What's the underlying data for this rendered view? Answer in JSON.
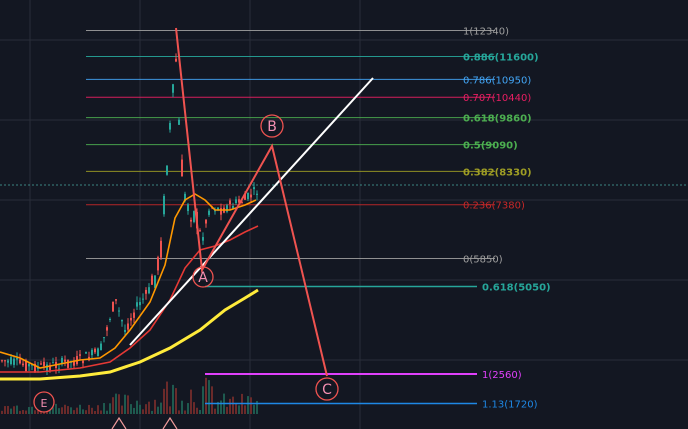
{
  "chart_data": {
    "type": "candlestick",
    "fib_levels": [
      {
        "ratio": "1",
        "price": 12340,
        "text": "1(12340)",
        "color": "#9e9e9e",
        "bold": false
      },
      {
        "ratio": "0.886",
        "price": 11600,
        "text": "0.886(11600)",
        "color": "#26a69a",
        "bold": true
      },
      {
        "ratio": "0.786",
        "price": 10950,
        "text": "0.786(10950)",
        "color": "#42a5f5",
        "bold": false
      },
      {
        "ratio": "0.707",
        "price": 10440,
        "text": "0.707(10440)",
        "color": "#e91e63",
        "bold": false
      },
      {
        "ratio": "0.618",
        "price": 9860,
        "text": "0.618(9860)",
        "color": "#4caf50",
        "bold": true
      },
      {
        "ratio": "0.5",
        "price": 9090,
        "text": "0.5(9090)",
        "color": "#4caf50",
        "bold": true
      },
      {
        "ratio": "0.382",
        "price": 8330,
        "text": "0.382(8330)",
        "color": "#9e9d24",
        "bold": true
      },
      {
        "ratio": "0.236",
        "price": 7380,
        "text": "0.236(7380)",
        "color": "#c62828",
        "bold": false
      },
      {
        "ratio": "0",
        "price": 5850,
        "text": "0(5850)",
        "color": "#9e9e9e",
        "bold": false
      }
    ],
    "projection_levels": [
      {
        "ratio": "0.618",
        "price": 5050,
        "text": "0.618(5050)",
        "color": "#26a69a",
        "bold": true
      },
      {
        "ratio": "1",
        "price": 2560,
        "text": "1(2560)",
        "color": "#e040fb",
        "bold": false
      },
      {
        "ratio": "1.13",
        "price": 1720,
        "text": "1.13(1720)",
        "color": "#1e88e5",
        "bold": false
      }
    ],
    "wave_labels": [
      "A",
      "B",
      "C",
      "E"
    ],
    "moving_averages": [
      {
        "color": "#ff9800"
      },
      {
        "color": "#e53935"
      },
      {
        "color": "#ffeb3b"
      }
    ],
    "colors": {
      "up": "#26a69a",
      "down": "#ef5350",
      "wave_path": "#ef5350",
      "trendline": "#ffffff"
    }
  }
}
